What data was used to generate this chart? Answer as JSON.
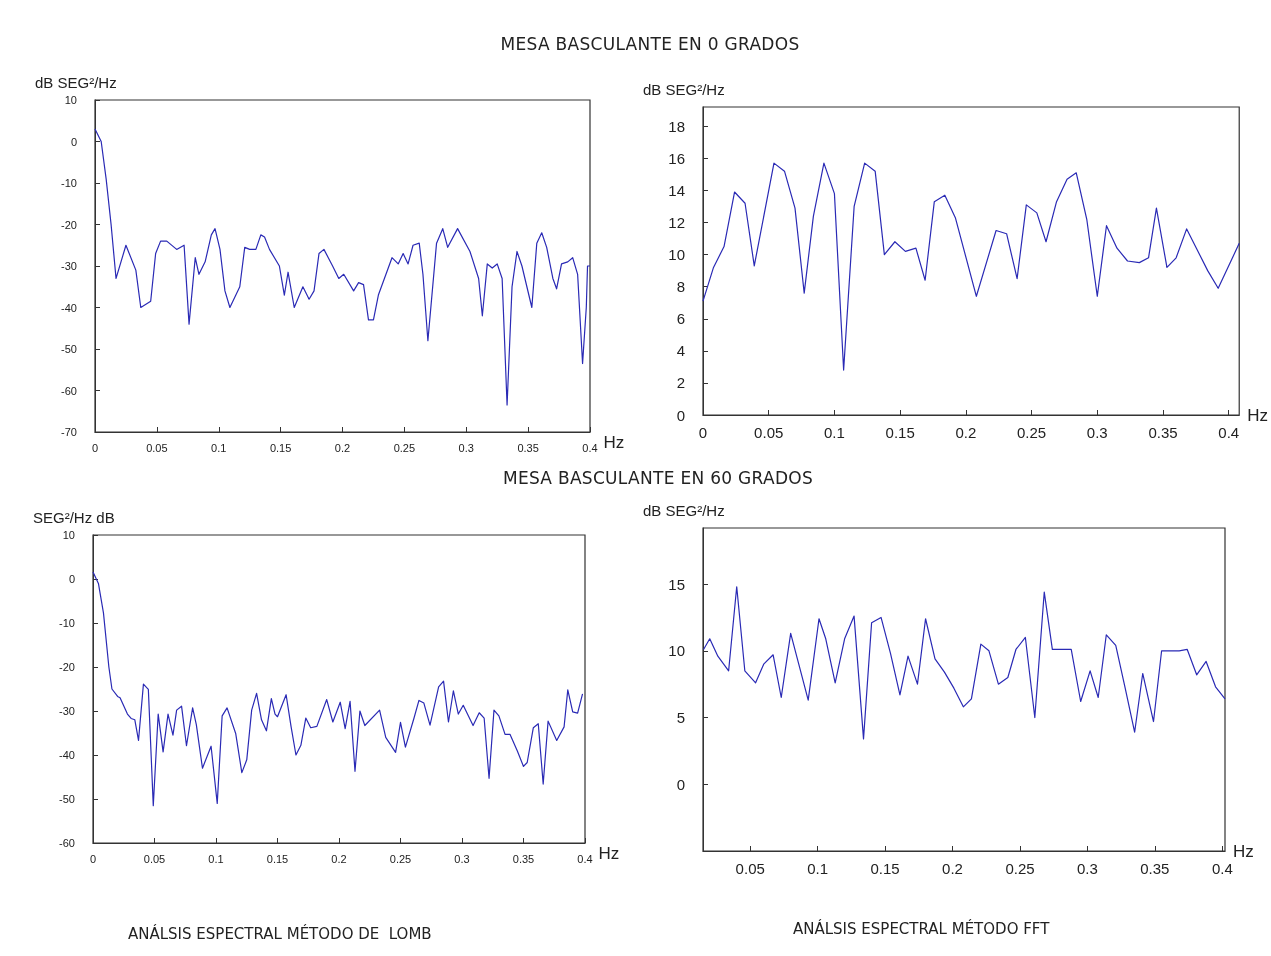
{
  "chart_data": [
    {
      "type": "line",
      "title": "MESA BASCULANTE EN 0 GRADOS",
      "xlabel": "Hz",
      "ylabel": "dB SEG²/Hz",
      "xlim": [
        0,
        0.4
      ],
      "ylim": [
        -70,
        10
      ],
      "xticks": [
        0,
        0.05,
        0.1,
        0.15,
        0.2,
        0.25,
        0.3,
        0.35,
        0.4
      ],
      "yticks": [
        -70,
        -60,
        -50,
        -40,
        -30,
        -20,
        -10,
        0,
        10
      ],
      "grid": false,
      "marker": "none",
      "line_style": "solid",
      "x": [
        0,
        0.005,
        0.009,
        0.013,
        0.017,
        0.025,
        0.033,
        0.037,
        0.045,
        0.049,
        0.053,
        0.058,
        0.066,
        0.072,
        0.076,
        0.081,
        0.084,
        0.089,
        0.094,
        0.097,
        0.101,
        0.105,
        0.109,
        0.117,
        0.121,
        0.125,
        0.13,
        0.134,
        0.137,
        0.141,
        0.149,
        0.153,
        0.156,
        0.161,
        0.168,
        0.173,
        0.177,
        0.181,
        0.185,
        0.192,
        0.197,
        0.201,
        0.209,
        0.213,
        0.217,
        0.221,
        0.225,
        0.229,
        0.24,
        0.245,
        0.249,
        0.253,
        0.257,
        0.262,
        0.265,
        0.269,
        0.276,
        0.281,
        0.285,
        0.293,
        0.303,
        0.31,
        0.313,
        0.317,
        0.321,
        0.325,
        0.329,
        0.333,
        0.337,
        0.341,
        0.345,
        0.353,
        0.357,
        0.361,
        0.365,
        0.37,
        0.373,
        0.377,
        0.382,
        0.386,
        0.39,
        0.394,
        0.397,
        0.398,
        0.4
      ],
      "series": [
        {
          "color": "#2a2ab5",
          "values": [
            3,
            0,
            -9,
            -20,
            -33,
            -25,
            -31,
            -40,
            -38.5,
            -27,
            -24,
            -24,
            -26,
            -25,
            -44,
            -28,
            -32,
            -29,
            -22.5,
            -21,
            -26,
            -36,
            -40,
            -35,
            -25.5,
            -26,
            -26,
            -22.5,
            -23,
            -26,
            -30,
            -37,
            -31.5,
            -40,
            -35,
            -38,
            -36,
            -27,
            -26,
            -30,
            -33,
            -32,
            -36,
            -34,
            -34.5,
            -43,
            -43,
            -37,
            -28,
            -29.5,
            -27,
            -29.5,
            -25,
            -24.5,
            -32,
            -48,
            -24.5,
            -21,
            -25.5,
            -21,
            -26.5,
            -33,
            -42,
            -29.5,
            -30.5,
            -29.5,
            -33,
            -63.5,
            -35,
            -26.5,
            -30,
            -40,
            -24.5,
            -22,
            -25.5,
            -33,
            -35.5,
            -29.5,
            -29,
            -28,
            -32,
            -53.5,
            -40,
            -30,
            -30
          ]
        }
      ]
    },
    {
      "type": "line",
      "xlabel": "Hz",
      "ylabel": "dB SEG²/Hz",
      "xlim": [
        0,
        0.408
      ],
      "ylim": [
        0,
        19.2
      ],
      "xticks": [
        0,
        0.05,
        0.1,
        0.15,
        0.2,
        0.25,
        0.3,
        0.35,
        0.4
      ],
      "yticks": [
        0,
        2,
        4,
        6,
        8,
        10,
        12,
        14,
        16,
        18
      ],
      "grid": false,
      "marker": "none",
      "line_style": "solid",
      "x": [
        0,
        0.008,
        0.016,
        0.024,
        0.032,
        0.039,
        0.054,
        0.062,
        0.07,
        0.077,
        0.084,
        0.092,
        0.1,
        0.107,
        0.115,
        0.123,
        0.131,
        0.138,
        0.146,
        0.154,
        0.162,
        0.169,
        0.176,
        0.184,
        0.192,
        0.208,
        0.223,
        0.231,
        0.239,
        0.246,
        0.254,
        0.261,
        0.269,
        0.277,
        0.284,
        0.292,
        0.3,
        0.307,
        0.315,
        0.323,
        0.332,
        0.339,
        0.345,
        0.353,
        0.36,
        0.368,
        0.384,
        0.392,
        0.408
      ],
      "series": [
        {
          "color": "#2a2ab5",
          "values": [
            7.1,
            9.2,
            10.5,
            13.9,
            13.2,
            9.3,
            15.7,
            15.2,
            12.9,
            7.6,
            12.4,
            15.7,
            13.8,
            2.8,
            13,
            15.7,
            15.2,
            10,
            10.8,
            10.2,
            10.4,
            8.4,
            13.3,
            13.7,
            12.3,
            7.4,
            11.5,
            11.3,
            8.5,
            13.1,
            12.6,
            10.8,
            13.3,
            14.7,
            15.1,
            12.2,
            7.4,
            11.8,
            10.4,
            9.6,
            9.5,
            9.8,
            12.9,
            9.2,
            9.8,
            11.6,
            9,
            7.9,
            10.7
          ]
        }
      ]
    },
    {
      "type": "line",
      "title": "MESA BASCULANTE EN 60 GRADOS",
      "xlabel": "Hz",
      "ylabel": "SEG²/Hz dB",
      "xlim": [
        0,
        0.4
      ],
      "ylim": [
        -60,
        10
      ],
      "xticks": [
        0,
        0.05,
        0.1,
        0.15,
        0.2,
        0.25,
        0.3,
        0.35,
        0.4
      ],
      "yticks": [
        -60,
        -50,
        -40,
        -30,
        -20,
        -10,
        0,
        10
      ],
      "grid": false,
      "marker": "none",
      "line_style": "solid",
      "annotations": [
        "ANÁLSIS ESPECTRAL MÉTODO DE  LOMB"
      ],
      "x": [
        0,
        0.0044,
        0.0085,
        0.0129,
        0.0154,
        0.02,
        0.022,
        0.028,
        0.031,
        0.034,
        0.037,
        0.041,
        0.045,
        0.049,
        0.053,
        0.057,
        0.061,
        0.065,
        0.068,
        0.072,
        0.076,
        0.081,
        0.084,
        0.089,
        0.096,
        0.101,
        0.105,
        0.109,
        0.116,
        0.121,
        0.125,
        0.129,
        0.133,
        0.137,
        0.141,
        0.145,
        0.148,
        0.15,
        0.157,
        0.161,
        0.165,
        0.169,
        0.173,
        0.177,
        0.182,
        0.19,
        0.195,
        0.201,
        0.205,
        0.209,
        0.213,
        0.217,
        0.221,
        0.233,
        0.238,
        0.246,
        0.25,
        0.254,
        0.261,
        0.265,
        0.269,
        0.274,
        0.281,
        0.285,
        0.289,
        0.293,
        0.297,
        0.301,
        0.309,
        0.314,
        0.318,
        0.322,
        0.326,
        0.33,
        0.335,
        0.339,
        0.345,
        0.35,
        0.353,
        0.358,
        0.362,
        0.366,
        0.37,
        0.377,
        0.383,
        0.386,
        0.39,
        0.394,
        0.398
      ],
      "series": [
        {
          "color": "#2a2ab5",
          "values": [
            1.6,
            -1,
            -7.7,
            -20,
            -25,
            -26.7,
            -27,
            -30.7,
            -31.7,
            -32,
            -36.7,
            -23.9,
            -25.1,
            -51.5,
            -30.7,
            -39.3,
            -30.7,
            -35.5,
            -29.8,
            -28.9,
            -37.9,
            -29.3,
            -33.1,
            -43,
            -38,
            -51,
            -31.1,
            -29.3,
            -35.1,
            -44,
            -41.1,
            -29.8,
            -26,
            -32,
            -34.5,
            -27.2,
            -30.7,
            -31.3,
            -26.3,
            -33.5,
            -40,
            -37.8,
            -31.6,
            -33.8,
            -33.5,
            -27.4,
            -32.5,
            -28,
            -34,
            -27.8,
            -43.7,
            -30,
            -33.3,
            -29.8,
            -36,
            -39.4,
            -32.6,
            -38.2,
            -31.6,
            -27.6,
            -28.2,
            -33.2,
            -24.5,
            -23.2,
            -32.5,
            -25.4,
            -30.7,
            -28.7,
            -33.3,
            -30.4,
            -31.6,
            -45.3,
            -29.8,
            -31.1,
            -35.3,
            -35.3,
            -39.1,
            -42.6,
            -41.7,
            -33.8,
            -32.9,
            -46.6,
            -32.3,
            -36.7,
            -33.6,
            -25.2,
            -30.2,
            -30.5,
            -26.1
          ]
        }
      ]
    },
    {
      "type": "line",
      "xlabel": "Hz",
      "ylabel": "dB SEG²/Hz",
      "xlim": [
        0.015,
        0.402
      ],
      "ylim": [
        -5,
        19.2
      ],
      "xticks": [
        0.05,
        0.1,
        0.15,
        0.2,
        0.25,
        0.3,
        0.35,
        0.4
      ],
      "yticks": [
        0,
        5,
        10,
        15
      ],
      "grid": false,
      "marker": "none",
      "line_style": "solid",
      "annotations": [
        "ANÁLSIS ESPECTRAL MÉTODO FFT"
      ],
      "x": [
        0.0154,
        0.02,
        0.026,
        0.034,
        0.04,
        0.046,
        0.054,
        0.06,
        0.067,
        0.073,
        0.08,
        0.086,
        0.093,
        0.101,
        0.106,
        0.113,
        0.12,
        0.127,
        0.134,
        0.14,
        0.147,
        0.154,
        0.161,
        0.167,
        0.174,
        0.18,
        0.187,
        0.194,
        0.201,
        0.208,
        0.214,
        0.221,
        0.227,
        0.234,
        0.241,
        0.247,
        0.254,
        0.261,
        0.268,
        0.274,
        0.288,
        0.295,
        0.302,
        0.308,
        0.314,
        0.321,
        0.328,
        0.335,
        0.341,
        0.349,
        0.355,
        0.368,
        0.374,
        0.381,
        0.388,
        0.395,
        0.402
      ],
      "series": [
        {
          "color": "#2a2ab5",
          "values": [
            10.1,
            10.9,
            9.6,
            8.5,
            14.8,
            8.5,
            7.6,
            9,
            9.7,
            6.5,
            11.3,
            9,
            6.3,
            12.4,
            10.9,
            7.6,
            10.9,
            12.6,
            3.4,
            12.1,
            12.5,
            9.8,
            6.7,
            9.6,
            7.5,
            12.4,
            9.4,
            8.4,
            7.2,
            5.8,
            6.4,
            10.5,
            10,
            7.5,
            8,
            10.1,
            11,
            5,
            14.4,
            10.1,
            10.1,
            6.2,
            8.5,
            6.5,
            11.2,
            10.4,
            7.2,
            3.9,
            8.3,
            4.7,
            10,
            10,
            10.1,
            8.2,
            9.2,
            7.3,
            6.4
          ]
        }
      ]
    }
  ]
}
